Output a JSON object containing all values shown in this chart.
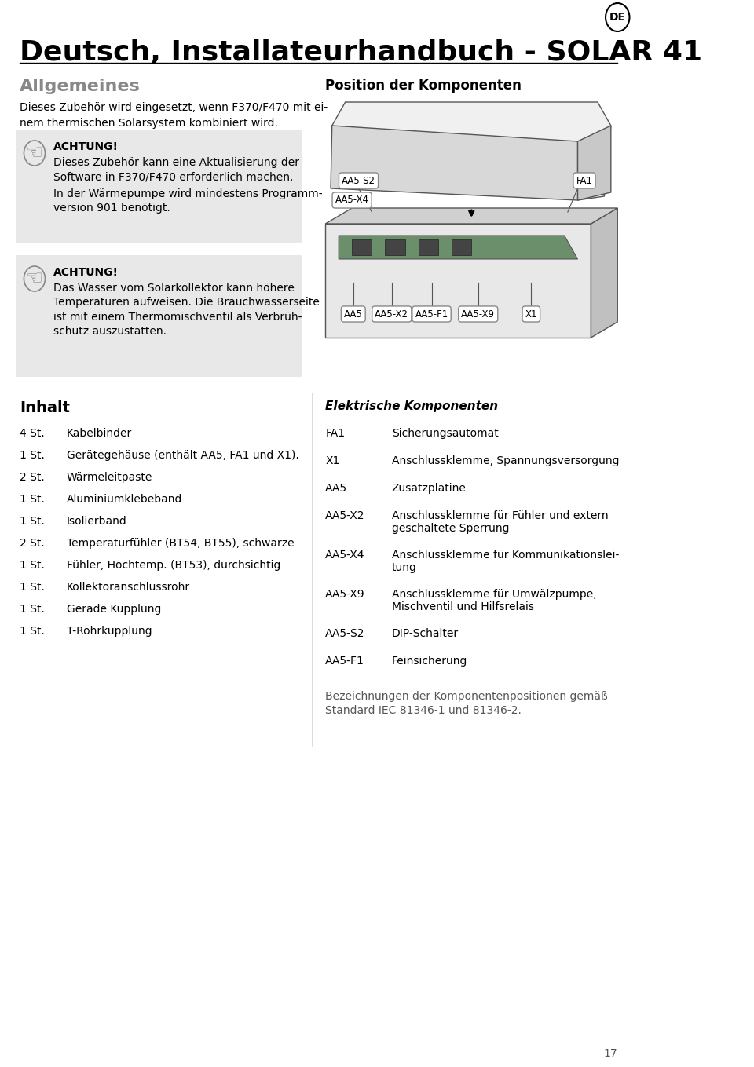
{
  "title": "Deutsch, Installateurhandbuch - SOLAR 41",
  "bg_color": "#ffffff",
  "text_color": "#000000",
  "gray_color": "#888888",
  "section_bg": "#e8e8e8",
  "allgemeines_title": "Allgemeines",
  "allgemeines_text": "Dieses Zubehör wird eingesetzt, wenn F370/F470 mit ei-\nnem thermischen Solarsystem kombiniert wird.",
  "achtung1_title": "ACHTUNG!",
  "achtung1_text1": "Dieses Zubehör kann eine Aktualisierung der\nSoftware in F370/F470 erforderlich machen.",
  "achtung1_text2": "In der Wärmepumpe wird mindestens Programm-\nversion 901 benötigt.",
  "achtung2_title": "ACHTUNG!",
  "achtung2_text": "Das Wasser vom Solarkollektor kann höhere\nTemperaturen aufweisen. Die Brauchwasserseite\nist mit einem Thermomischventil als Verbrüh-\nschutz auszustatten.",
  "position_title": "Position der Komponenten",
  "inhalt_title": "Inhalt",
  "inhalt_items": [
    [
      "4 St.",
      "Kabelbinder"
    ],
    [
      "1 St.",
      "Gerätegehäuse (enthält AA5, FA1 und X1)."
    ],
    [
      "2 St.",
      "Wärmeleitpaste"
    ],
    [
      "1 St.",
      "Aluminiumklebeband"
    ],
    [
      "1 St.",
      "Isolierband"
    ],
    [
      "2 St.",
      "Temperaturfühler (BT54, BT55), schwarze"
    ],
    [
      "1 St.",
      "Fühler, Hochtemp. (BT53), durchsichtig"
    ],
    [
      "1 St.",
      "Kollektoranschlussrohr"
    ],
    [
      "1 St.",
      "Gerade Kupplung"
    ],
    [
      "1 St.",
      "T-Rohrkupplung"
    ]
  ],
  "elektr_title": "Elektrische Komponenten",
  "elektr_items": [
    [
      "FA1",
      "Sicherungsautomat"
    ],
    [
      "X1",
      "Anschlussklemme, Spannungsversorgung"
    ],
    [
      "AA5",
      "Zusatzplatine"
    ],
    [
      "AA5-X2",
      "Anschlussklemme für Fühler und extern\ngeschaltete Sperrung"
    ],
    [
      "AA5-X4",
      "Anschlussklemme für Kommunikationslei-\ntung"
    ],
    [
      "AA5-X9",
      "Anschlussklemme für Umwälzpumpe,\nMischventil und Hilfsrelais"
    ],
    [
      "AA5-S2",
      "DIP-Schalter"
    ],
    [
      "AA5-F1",
      "Feinsicherung"
    ]
  ],
  "bezeichnung_text": "Bezeichnungen der Komponentenpositionen gemäß\nStandard IEC 81346-1 und 81346-2.",
  "page_number": "17",
  "de_badge": "DE"
}
